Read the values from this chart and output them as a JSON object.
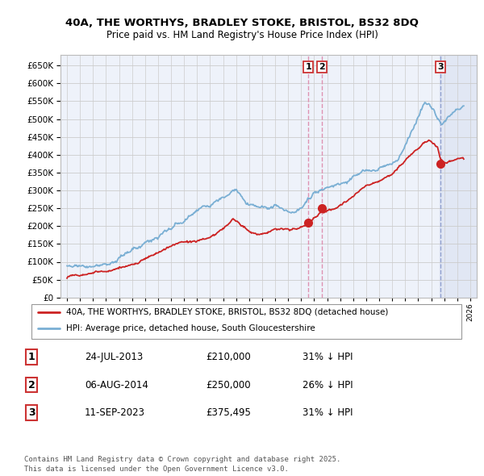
{
  "title_line1": "40A, THE WORTHYS, BRADLEY STOKE, BRISTOL, BS32 8DQ",
  "title_line2": "Price paid vs. HM Land Registry's House Price Index (HPI)",
  "background_color": "#ffffff",
  "plot_bg_color": "#f0f4ff",
  "grid_color": "#cccccc",
  "hpi_color": "#7aafd4",
  "price_color": "#cc2222",
  "vline_color_12": "#dd88aa",
  "vline_color_3": "#8899cc",
  "transactions": [
    {
      "label": "1",
      "date_num": 2013.56,
      "price": 210000
    },
    {
      "label": "2",
      "date_num": 2014.6,
      "price": 250000
    },
    {
      "label": "3",
      "date_num": 2023.7,
      "price": 375495
    }
  ],
  "legend_entries": [
    {
      "label": "40A, THE WORTHYS, BRADLEY STOKE, BRISTOL, BS32 8DQ (detached house)",
      "color": "#cc2222"
    },
    {
      "label": "HPI: Average price, detached house, South Gloucestershire",
      "color": "#7aafd4"
    }
  ],
  "table_rows": [
    {
      "num": "1",
      "date": "24-JUL-2013",
      "price": "£210,000",
      "hpi": "31% ↓ HPI"
    },
    {
      "num": "2",
      "date": "06-AUG-2014",
      "price": "£250,000",
      "hpi": "26% ↓ HPI"
    },
    {
      "num": "3",
      "date": "11-SEP-2023",
      "price": "£375,495",
      "hpi": "31% ↓ HPI"
    }
  ],
  "footer": "Contains HM Land Registry data © Crown copyright and database right 2025.\nThis data is licensed under the Open Government Licence v3.0.",
  "ylim": [
    0,
    680000
  ],
  "xlim_start": 1994.5,
  "xlim_end": 2026.5
}
